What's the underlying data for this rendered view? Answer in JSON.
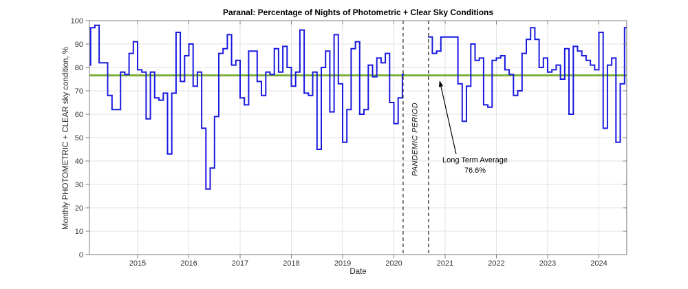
{
  "figure": {
    "title": "Paranal: Percentage of Nights of Photometric + Clear Sky Conditions",
    "xlabel": "Date",
    "ylabel": "Monthly PHOTOMETRIC + CLEAR sky condition, %"
  },
  "annotations": {
    "long_term_avg_line1": "Long Term Average",
    "long_term_avg_line2": "76.6%",
    "pandemic_label": "PANDEMIC PERIOD"
  },
  "chart_data": {
    "type": "line",
    "subtype": "step-monthly",
    "title": "Paranal: Percentage of Nights of Photometric + Clear Sky Conditions",
    "xlabel": "Date",
    "ylabel": "Monthly PHOTOMETRIC + CLEAR sky condition, %",
    "xlim": [
      2014.06,
      2024.54
    ],
    "ylim": [
      0,
      100
    ],
    "xticks": [
      2015,
      2016,
      2017,
      2018,
      2019,
      2020,
      2021,
      2022,
      2023,
      2024
    ],
    "yticks": [
      0,
      10,
      20,
      30,
      40,
      50,
      60,
      70,
      80,
      90,
      100
    ],
    "grid": true,
    "long_term_average": 76.6,
    "pandemic_period_lines": [
      2020.18,
      2020.675
    ],
    "data_gap": {
      "start": 2020.2,
      "end": 2020.667
    },
    "series_start": "2014-01",
    "monthly_values": {
      "2014": [
        81,
        97,
        98,
        82,
        82,
        68,
        62,
        62,
        78,
        77,
        86,
        91
      ],
      "2015": [
        79,
        78,
        58,
        78,
        67,
        66,
        69,
        43,
        69,
        95,
        74,
        85
      ],
      "2016": [
        90,
        72,
        78,
        54,
        28,
        37,
        59,
        86,
        88,
        94,
        81,
        83
      ],
      "2017": [
        67,
        64,
        87,
        87,
        74,
        68,
        78,
        77,
        88,
        78,
        89,
        80
      ],
      "2018": [
        72,
        78,
        96,
        69,
        68,
        78,
        45,
        80,
        87,
        61,
        94,
        73
      ],
      "2019": [
        48,
        62,
        88,
        91,
        60,
        62,
        81,
        76,
        84,
        82,
        86,
        65
      ],
      "2020": [
        56,
        67,
        77,
        null,
        null,
        null,
        null,
        null,
        93,
        86,
        87,
        93
      ],
      "2021": [
        93,
        93,
        93,
        73,
        57,
        72,
        90,
        83,
        84,
        64,
        63,
        83
      ],
      "2022": [
        84,
        85,
        79,
        77,
        68,
        70,
        86,
        92,
        97,
        92,
        80,
        84
      ],
      "2023": [
        78,
        79,
        81,
        75,
        88,
        60,
        89,
        87,
        85,
        83,
        81,
        79
      ],
      "2024": [
        95,
        54,
        81,
        84,
        48,
        73,
        97
      ]
    },
    "colors": {
      "line": "#1919e0",
      "average_line": "#77ac30",
      "dashed_line": "#333333",
      "grid_line": "#e2e2e2",
      "axis_box": "#7d7d7d",
      "tick_text": "#323232"
    }
  }
}
